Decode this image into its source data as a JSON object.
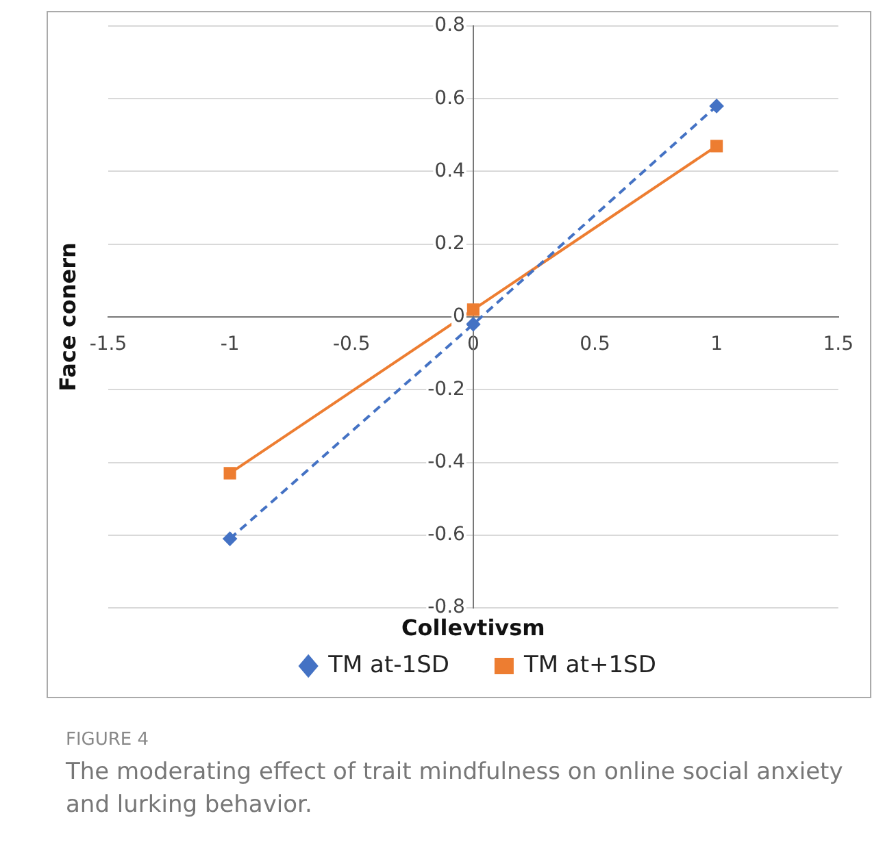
{
  "chart_data": {
    "type": "line",
    "xlabel": "Collevtivsm",
    "ylabel": "Face conern",
    "x": [
      -1,
      0,
      1
    ],
    "series": [
      {
        "name": "TM at-1SD",
        "color": "#4472c4",
        "values": [
          -0.61,
          -0.02,
          0.58
        ],
        "marker": "diamond",
        "line_style": "dashed"
      },
      {
        "name": "TM at+1SD",
        "color": "#ed7d31",
        "values": [
          -0.43,
          0.02,
          0.47
        ],
        "marker": "square",
        "line_style": "solid"
      }
    ],
    "xlim": [
      -1.5,
      1.5
    ],
    "xticks": [
      -1.5,
      -1,
      -0.5,
      0,
      0.5,
      1,
      1.5
    ],
    "ylim": [
      -0.8,
      0.8
    ],
    "yticks": [
      -0.8,
      -0.6,
      -0.4,
      -0.2,
      0,
      0.2,
      0.4,
      0.6,
      0.8
    ],
    "grid": "y",
    "legend": "bottom",
    "annotations": [
      "FIGURE 4",
      "The moderating effect of trait mindfulness on online social anxiety and lurking behavior."
    ]
  }
}
